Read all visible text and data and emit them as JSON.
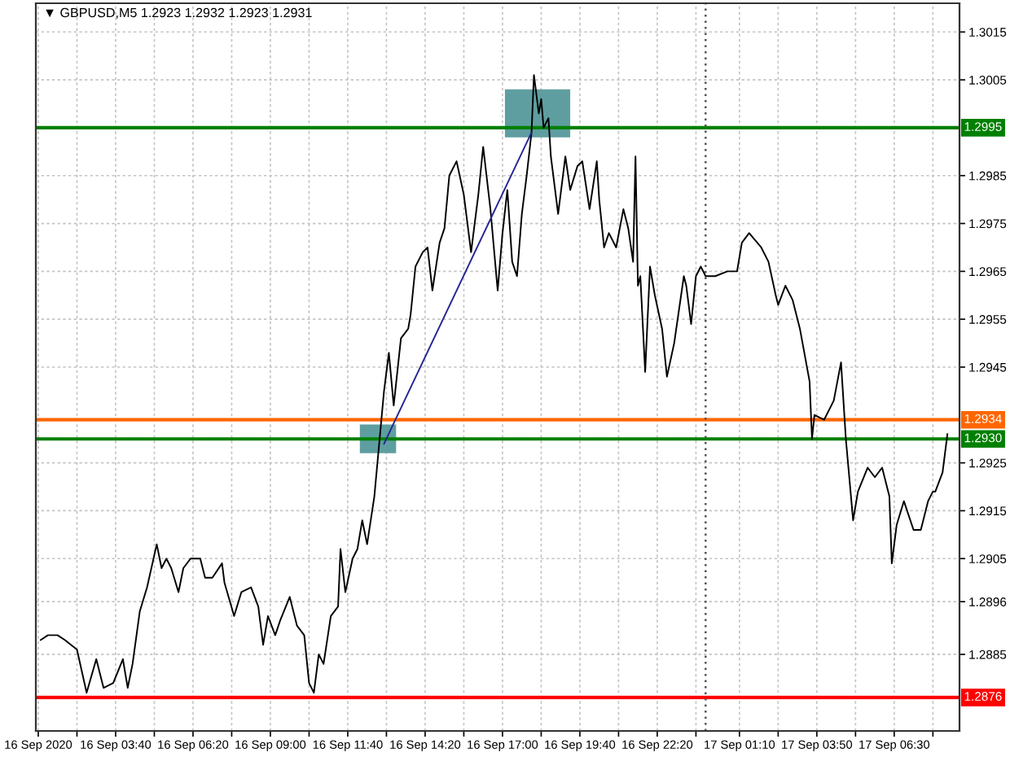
{
  "chart_data": {
    "type": "line",
    "title": "▼ GBPUSD,M5 1.2923 1.2932 1.2923 1.2931",
    "xlim": [
      "2020-09-16T00:55",
      "2020-09-17T08:45"
    ],
    "ylim": [
      1.2869,
      1.3021
    ],
    "xticks": [
      {
        "value": "2020-09-16T01:00",
        "label": "16 Sep 2020"
      },
      {
        "value": "2020-09-16T02:20",
        "label": null
      },
      {
        "value": "2020-09-16T03:40",
        "label": "16 Sep 03:40"
      },
      {
        "value": "2020-09-16T05:00",
        "label": null
      },
      {
        "value": "2020-09-16T06:20",
        "label": "16 Sep 06:20"
      },
      {
        "value": "2020-09-16T07:40",
        "label": null
      },
      {
        "value": "2020-09-16T09:00",
        "label": "16 Sep 09:00"
      },
      {
        "value": "2020-09-16T10:20",
        "label": null
      },
      {
        "value": "2020-09-16T11:40",
        "label": "16 Sep 11:40"
      },
      {
        "value": "2020-09-16T13:00",
        "label": null
      },
      {
        "value": "2020-09-16T14:20",
        "label": "16 Sep 14:20"
      },
      {
        "value": "2020-09-16T15:40",
        "label": null
      },
      {
        "value": "2020-09-16T17:00",
        "label": "16 Sep 17:00"
      },
      {
        "value": "2020-09-16T18:20",
        "label": null
      },
      {
        "value": "2020-09-16T19:40",
        "label": "16 Sep 19:40"
      },
      {
        "value": "2020-09-16T21:00",
        "label": null
      },
      {
        "value": "2020-09-16T22:20",
        "label": "16 Sep 22:20"
      },
      {
        "value": "2020-09-16T23:40",
        "label": null
      },
      {
        "value": "2020-09-17T01:10",
        "label": "17 Sep 01:10"
      },
      {
        "value": "2020-09-17T02:30",
        "label": null
      },
      {
        "value": "2020-09-17T03:50",
        "label": "17 Sep 03:50"
      },
      {
        "value": "2020-09-17T05:10",
        "label": null
      },
      {
        "value": "2020-09-17T06:30",
        "label": "17 Sep 06:30"
      },
      {
        "value": "2020-09-17T07:50",
        "label": null
      }
    ],
    "yticks": [
      1.2885,
      1.2896,
      1.2905,
      1.2915,
      1.2925,
      1.2945,
      1.2955,
      1.2965,
      1.2975,
      1.2985,
      1.3005,
      1.3015
    ],
    "grid": true,
    "ref_lines": [
      {
        "axis": "y",
        "value": 1.2995,
        "label": "1.2995",
        "color": "#008000"
      },
      {
        "axis": "y",
        "value": 1.2934,
        "label": "1.2934",
        "color": "#ff6600"
      },
      {
        "axis": "y",
        "value": 1.293,
        "label": "1.2930",
        "color": "#008000"
      },
      {
        "axis": "y",
        "value": 1.2876,
        "label": "1.2876",
        "color": "#ff0000"
      },
      {
        "axis": "x",
        "value": "2020-09-17T00:00",
        "color": "#555555",
        "line_style": "dotted"
      }
    ],
    "series": [
      {
        "color": "#5f9ea0",
        "x": [
          "2020-09-16T12:05",
          "2020-09-16T13:20"
        ],
        "values": [
          null,
          null
        ],
        "lower": [
          1.2927,
          1.2927
        ],
        "upper": [
          1.2933,
          1.2933
        ]
      },
      {
        "color": "#5f9ea0",
        "x": [
          "2020-09-16T17:05",
          "2020-09-16T19:20"
        ],
        "values": [
          null,
          null
        ],
        "lower": [
          1.2993,
          1.2993
        ],
        "upper": [
          1.3003,
          1.3003
        ]
      },
      {
        "color": "#000000",
        "x": [
          "2020-09-16T01:05",
          "2020-09-16T01:20",
          "2020-09-16T01:40",
          "2020-09-16T01:55",
          "2020-09-16T02:20",
          "2020-09-16T02:40",
          "2020-09-16T03:00",
          "2020-09-16T03:15",
          "2020-09-16T03:35",
          "2020-09-16T03:55",
          "2020-09-16T04:05",
          "2020-09-16T04:15",
          "2020-09-16T04:30",
          "2020-09-16T04:45",
          "2020-09-16T05:05",
          "2020-09-16T05:15",
          "2020-09-16T05:25",
          "2020-09-16T05:35",
          "2020-09-16T05:50",
          "2020-09-16T06:00",
          "2020-09-16T06:15",
          "2020-09-16T06:35",
          "2020-09-16T06:45",
          "2020-09-16T07:00",
          "2020-09-16T07:20",
          "2020-09-16T07:25",
          "2020-09-16T07:45",
          "2020-09-16T08:00",
          "2020-09-16T08:20",
          "2020-09-16T08:35",
          "2020-09-16T08:45",
          "2020-09-16T08:55",
          "2020-09-16T09:10",
          "2020-09-16T09:20",
          "2020-09-16T09:40",
          "2020-09-16T09:55",
          "2020-09-16T10:10",
          "2020-09-16T10:20",
          "2020-09-16T10:30",
          "2020-09-16T10:40",
          "2020-09-16T10:50",
          "2020-09-16T11:05",
          "2020-09-16T11:20",
          "2020-09-16T11:25",
          "2020-09-16T11:35",
          "2020-09-16T11:50",
          "2020-09-16T12:00",
          "2020-09-16T12:10",
          "2020-09-16T12:20",
          "2020-09-16T12:35",
          "2020-09-16T12:55",
          "2020-09-16T13:05",
          "2020-09-16T13:15",
          "2020-09-16T13:30",
          "2020-09-16T13:45",
          "2020-09-16T13:50",
          "2020-09-16T14:00",
          "2020-09-16T14:15",
          "2020-09-16T14:25",
          "2020-09-16T14:35",
          "2020-09-16T14:50",
          "2020-09-16T15:00",
          "2020-09-16T15:10",
          "2020-09-16T15:25",
          "2020-09-16T15:40",
          "2020-09-16T15:55",
          "2020-09-16T16:10",
          "2020-09-16T16:20",
          "2020-09-16T16:35",
          "2020-09-16T16:50",
          "2020-09-16T17:00",
          "2020-09-16T17:10",
          "2020-09-16T17:20",
          "2020-09-16T17:30",
          "2020-09-16T17:40",
          "2020-09-16T17:50",
          "2020-09-16T18:00",
          "2020-09-16T18:05",
          "2020-09-16T18:15",
          "2020-09-16T18:20",
          "2020-09-16T18:25",
          "2020-09-16T18:35",
          "2020-09-16T18:40",
          "2020-09-16T18:55",
          "2020-09-16T19:10",
          "2020-09-16T19:20",
          "2020-09-16T19:35",
          "2020-09-16T19:45",
          "2020-09-16T20:00",
          "2020-09-16T20:15",
          "2020-09-16T20:20",
          "2020-09-16T20:30",
          "2020-09-16T20:40",
          "2020-09-16T20:55",
          "2020-09-16T21:10",
          "2020-09-16T21:20",
          "2020-09-16T21:30",
          "2020-09-16T21:35",
          "2020-09-16T21:40",
          "2020-09-16T21:45",
          "2020-09-16T21:55",
          "2020-09-16T22:05",
          "2020-09-16T22:15",
          "2020-09-16T22:30",
          "2020-09-16T22:40",
          "2020-09-16T22:55",
          "2020-09-16T23:15",
          "2020-09-16T23:20",
          "2020-09-16T23:30",
          "2020-09-16T23:40",
          "2020-09-16T23:50",
          "2020-09-17T00:00",
          "2020-09-17T00:20",
          "2020-09-17T00:45",
          "2020-09-17T01:05",
          "2020-09-17T01:15",
          "2020-09-17T01:30",
          "2020-09-17T01:55",
          "2020-09-17T02:10",
          "2020-09-17T02:25",
          "2020-09-17T02:30",
          "2020-09-17T02:45",
          "2020-09-17T03:00",
          "2020-09-17T03:15",
          "2020-09-17T03:35",
          "2020-09-17T03:40",
          "2020-09-17T03:45",
          "2020-09-17T04:05",
          "2020-09-17T04:25",
          "2020-09-17T04:40",
          "2020-09-17T04:50",
          "2020-09-17T05:05",
          "2020-09-17T05:15",
          "2020-09-17T05:35",
          "2020-09-17T05:50",
          "2020-09-17T06:05",
          "2020-09-17T06:20",
          "2020-09-17T06:25",
          "2020-09-17T06:35",
          "2020-09-17T06:50",
          "2020-09-17T07:10",
          "2020-09-17T07:25",
          "2020-09-17T07:40",
          "2020-09-17T07:50",
          "2020-09-17T07:55",
          "2020-09-17T08:10",
          "2020-09-17T08:20"
        ],
        "values": [
          1.2888,
          1.2889,
          1.2889,
          1.2888,
          1.2886,
          1.2877,
          1.2884,
          1.2878,
          1.2879,
          1.2884,
          1.2878,
          1.2883,
          1.2894,
          1.2899,
          1.2908,
          1.2903,
          1.2905,
          1.2903,
          1.2898,
          1.2903,
          1.2905,
          1.2905,
          1.2901,
          1.2901,
          1.2904,
          1.29,
          1.2893,
          1.2898,
          1.2899,
          1.2895,
          1.2887,
          1.2893,
          1.2889,
          1.2892,
          1.2897,
          1.2891,
          1.2889,
          1.2879,
          1.2877,
          1.2885,
          1.2883,
          1.2893,
          1.2895,
          1.2907,
          1.2898,
          1.2905,
          1.2907,
          1.2913,
          1.2908,
          1.2918,
          1.294,
          1.2948,
          1.2937,
          1.2951,
          1.2953,
          1.2956,
          1.2966,
          1.2969,
          1.297,
          1.2961,
          1.2971,
          1.2974,
          1.2985,
          1.2988,
          1.2981,
          1.2969,
          1.2981,
          1.2991,
          1.2978,
          1.2961,
          1.2973,
          1.2982,
          1.2967,
          1.2964,
          1.2977,
          1.2985,
          1.2994,
          1.3006,
          1.2998,
          1.3001,
          1.2995,
          1.2997,
          1.2989,
          1.2977,
          1.2989,
          1.2982,
          1.2987,
          1.2988,
          1.2978,
          1.2988,
          1.298,
          1.297,
          1.2973,
          1.297,
          1.2978,
          1.2974,
          1.2967,
          1.2989,
          1.2962,
          1.2964,
          1.2944,
          1.2966,
          1.296,
          1.2953,
          1.2943,
          1.295,
          1.2964,
          1.2962,
          1.2954,
          1.2964,
          1.2966,
          1.2964,
          1.2964,
          1.2965,
          1.2965,
          1.2971,
          1.2973,
          1.297,
          1.2967,
          1.296,
          1.2958,
          1.2962,
          1.2959,
          1.2953,
          1.2942,
          1.293,
          1.2935,
          1.2934,
          1.2938,
          1.2946,
          1.293,
          1.2913,
          1.2919,
          1.2924,
          1.2922,
          1.2924,
          1.2918,
          1.2904,
          1.2912,
          1.2917,
          1.2911,
          1.2911,
          1.2917,
          1.2919,
          1.2919,
          1.2923,
          1.2931
        ]
      },
      {
        "color": "#262693",
        "x": [
          "2020-09-16T12:55",
          "2020-09-16T18:00"
        ],
        "values": [
          1.2929,
          1.2994
        ]
      }
    ]
  }
}
